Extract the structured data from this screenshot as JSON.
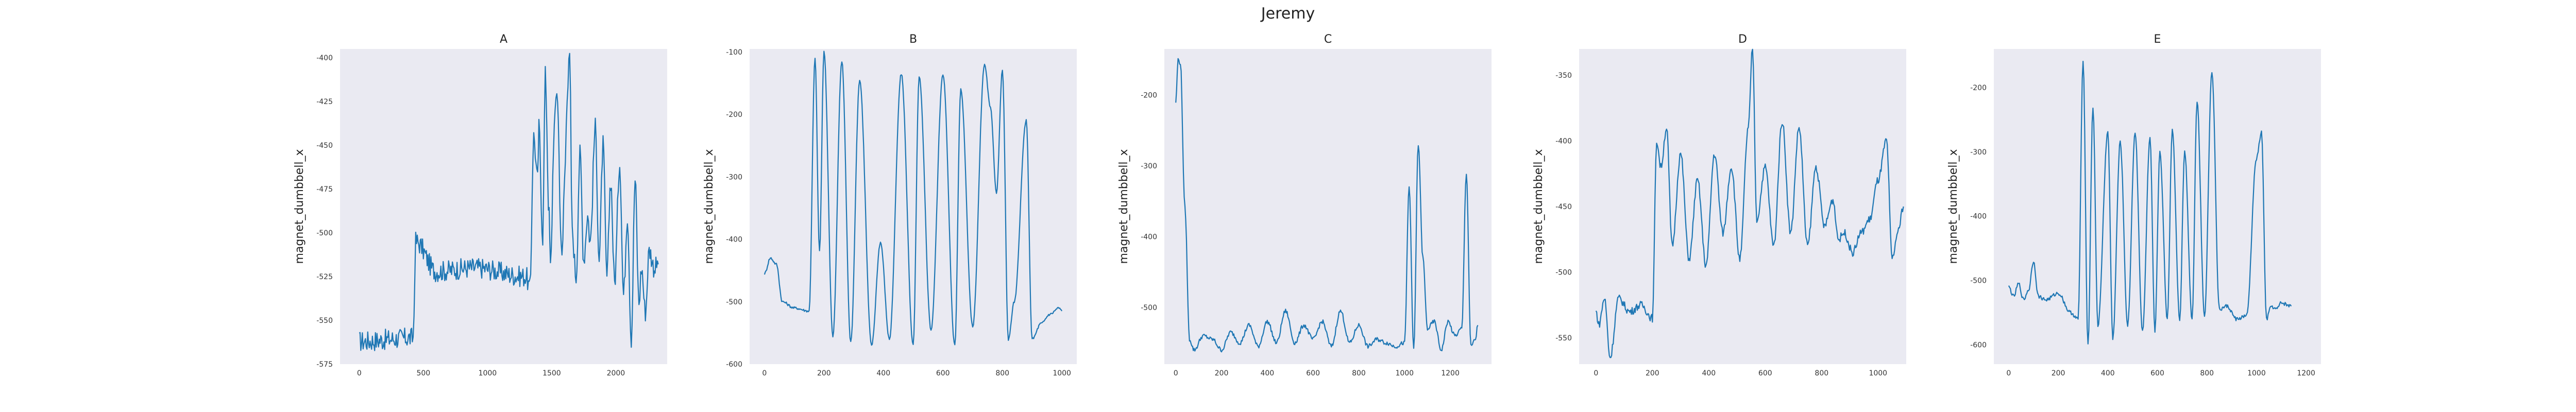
{
  "suptitle": "Jeremy",
  "chart_data": [
    {
      "type": "line",
      "title": "A",
      "ylabel": "magnet_dumbbell_x",
      "xlabel": "",
      "xlim": [
        -150,
        2400
      ],
      "ylim": [
        -575,
        -395
      ],
      "xticks": [
        0,
        500,
        1000,
        1500,
        2000
      ],
      "yticks": [
        -575,
        -550,
        -525,
        -500,
        -475,
        -450,
        -425,
        -400
      ],
      "grid": false,
      "series": [
        {
          "noise": 6,
          "x": [
            0,
            420,
            440,
            600,
            900,
            1300,
            1330,
            1360,
            1390,
            1400,
            1430,
            1450,
            1480,
            1490,
            1520,
            1540,
            1580,
            1600,
            1620,
            1640,
            1660,
            1690,
            1720,
            1750,
            1780,
            1800,
            1840,
            1870,
            1900,
            1930,
            1960,
            1990,
            2030,
            2060,
            2090,
            2120,
            2150,
            2180,
            2200,
            2230,
            2260,
            2300,
            2330
          ],
          "y": [
            -562,
            -560,
            -505,
            -522,
            -520,
            -525,
            -532,
            -445,
            -470,
            -440,
            -502,
            -410,
            -490,
            -520,
            -440,
            -418,
            -515,
            -470,
            -420,
            -400,
            -500,
            -525,
            -455,
            -515,
            -490,
            -505,
            -440,
            -515,
            -450,
            -525,
            -470,
            -528,
            -460,
            -535,
            -490,
            -560,
            -470,
            -540,
            -520,
            -545,
            -510,
            -520,
            -518
          ]
        }
      ]
    },
    {
      "type": "line",
      "title": "B",
      "ylabel": "magnet_dumbbell_x",
      "xlabel": "",
      "xlim": [
        -50,
        1050
      ],
      "ylim": [
        -600,
        -95
      ],
      "xticks": [
        0,
        200,
        400,
        600,
        800,
        1000
      ],
      "yticks": [
        -600,
        -500,
        -400,
        -300,
        -200,
        -100
      ],
      "grid": false,
      "series": [
        {
          "noise": 2,
          "x": [
            0,
            20,
            40,
            60,
            100,
            150,
            170,
            185,
            200,
            230,
            260,
            290,
            320,
            360,
            390,
            420,
            460,
            500,
            520,
            560,
            600,
            640,
            660,
            700,
            740,
            760,
            780,
            800,
            820,
            840,
            880,
            900,
            930,
            960,
            990,
            1000
          ],
          "y": [
            -455,
            -430,
            -440,
            -500,
            -510,
            -515,
            -110,
            -420,
            -100,
            -555,
            -115,
            -565,
            -145,
            -570,
            -405,
            -560,
            -135,
            -570,
            -140,
            -545,
            -135,
            -570,
            -160,
            -540,
            -120,
            -190,
            -325,
            -130,
            -560,
            -500,
            -210,
            -560,
            -535,
            -520,
            -510,
            -515
          ]
        }
      ]
    },
    {
      "type": "line",
      "title": "C",
      "ylabel": "magnet_dumbbell_x",
      "xlabel": "",
      "xlim": [
        -50,
        1380
      ],
      "ylim": [
        -580,
        -135
      ],
      "xticks": [
        0,
        200,
        400,
        600,
        800,
        1000,
        1200
      ],
      "yticks": [
        -500,
        -400,
        -300,
        -200
      ],
      "grid": false,
      "series": [
        {
          "noise": 3,
          "x": [
            0,
            10,
            20,
            40,
            60,
            80,
            120,
            160,
            200,
            240,
            280,
            320,
            360,
            400,
            440,
            480,
            520,
            560,
            600,
            640,
            680,
            720,
            760,
            800,
            840,
            880,
            920,
            960,
            1000,
            1020,
            1040,
            1060,
            1080,
            1100,
            1130,
            1160,
            1190,
            1220,
            1250,
            1270,
            1290,
            1310,
            1320
          ],
          "y": [
            -210,
            -150,
            -155,
            -360,
            -545,
            -560,
            -540,
            -545,
            -560,
            -535,
            -550,
            -525,
            -555,
            -520,
            -550,
            -505,
            -550,
            -525,
            -545,
            -520,
            -555,
            -505,
            -550,
            -525,
            -555,
            -545,
            -550,
            -555,
            -550,
            -330,
            -560,
            -270,
            -430,
            -530,
            -520,
            -560,
            -520,
            -540,
            -530,
            -310,
            -555,
            -545,
            -525
          ]
        }
      ]
    },
    {
      "type": "line",
      "title": "D",
      "ylabel": "magnet_dumbbell_x",
      "xlabel": "",
      "xlim": [
        -60,
        1100
      ],
      "ylim": [
        -570,
        -330
      ],
      "xticks": [
        0,
        200,
        400,
        600,
        800,
        1000
      ],
      "yticks": [
        -550,
        -500,
        -450,
        -400,
        -350
      ],
      "grid": false,
      "series": [
        {
          "noise": 3,
          "x": [
            0,
            10,
            30,
            50,
            80,
            120,
            160,
            200,
            215,
            230,
            250,
            270,
            300,
            330,
            360,
            390,
            420,
            450,
            480,
            510,
            540,
            555,
            570,
            600,
            630,
            660,
            690,
            720,
            750,
            780,
            810,
            840,
            860,
            880,
            910,
            940,
            970,
            1000,
            1030,
            1050,
            1070,
            1090
          ],
          "y": [
            -530,
            -540,
            -520,
            -565,
            -520,
            -530,
            -525,
            -535,
            -400,
            -420,
            -390,
            -480,
            -410,
            -490,
            -430,
            -495,
            -410,
            -470,
            -420,
            -490,
            -390,
            -330,
            -460,
            -420,
            -480,
            -385,
            -470,
            -390,
            -480,
            -420,
            -465,
            -445,
            -475,
            -470,
            -485,
            -470,
            -460,
            -430,
            -400,
            -490,
            -470,
            -450
          ]
        }
      ]
    },
    {
      "type": "line",
      "title": "E",
      "ylabel": "magnet_dumbbell_x",
      "xlabel": "",
      "xlim": [
        -60,
        1260
      ],
      "ylim": [
        -630,
        -140
      ],
      "xticks": [
        0,
        200,
        400,
        600,
        800,
        1000,
        1200
      ],
      "yticks": [
        -600,
        -500,
        -400,
        -300,
        -200
      ],
      "grid": false,
      "series": [
        {
          "noise": 3,
          "x": [
            0,
            20,
            40,
            60,
            80,
            100,
            120,
            150,
            200,
            250,
            280,
            300,
            320,
            340,
            360,
            400,
            420,
            450,
            480,
            510,
            540,
            570,
            590,
            610,
            640,
            660,
            690,
            710,
            740,
            760,
            790,
            820,
            850,
            880,
            920,
            960,
            1000,
            1020,
            1040,
            1060,
            1080,
            1100,
            1140
          ],
          "y": [
            -510,
            -525,
            -505,
            -530,
            -515,
            -470,
            -525,
            -530,
            -520,
            -550,
            -560,
            -160,
            -600,
            -230,
            -570,
            -270,
            -590,
            -285,
            -570,
            -270,
            -580,
            -280,
            -580,
            -300,
            -560,
            -265,
            -560,
            -300,
            -560,
            -220,
            -555,
            -175,
            -545,
            -540,
            -560,
            -555,
            -310,
            -270,
            -560,
            -540,
            -545,
            -535,
            -540
          ]
        }
      ]
    }
  ]
}
